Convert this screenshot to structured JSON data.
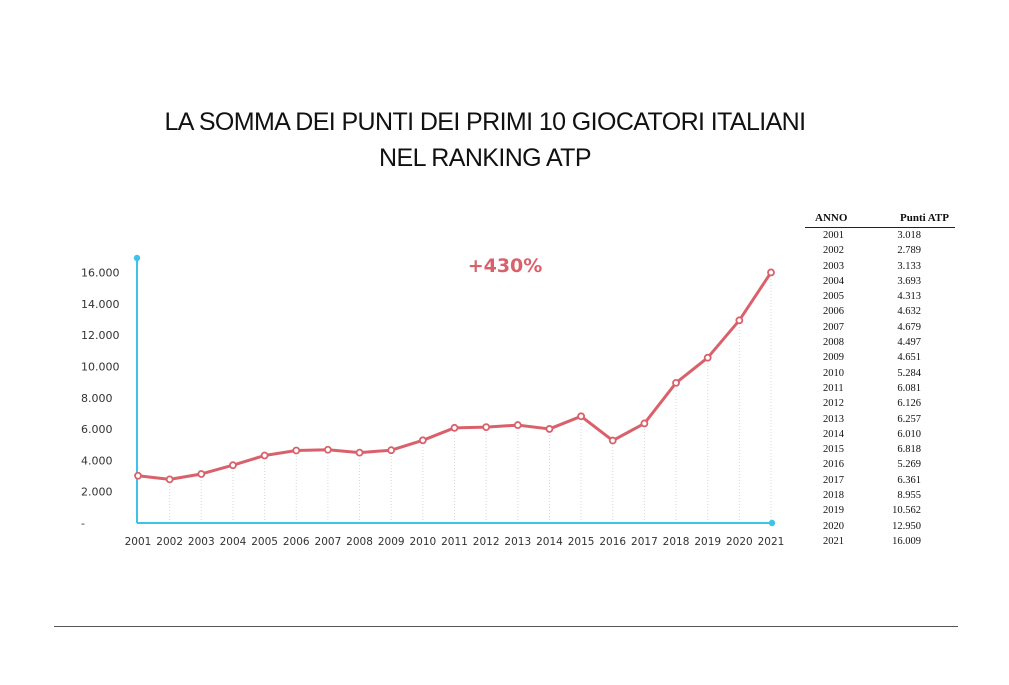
{
  "slide": {
    "title_line1": "LA SOMMA DEI PUNTI DEI PRIMI 10 GIOCATORI ITALIANI",
    "title_line2": "NEL RANKING ATP"
  },
  "colors": {
    "line": "#d9616b",
    "axis": "#3ec3e6",
    "grid": "#d8d8d8",
    "annotation": "#d9616b"
  },
  "chart_data": {
    "type": "line",
    "x": [
      "2001",
      "2002",
      "2003",
      "2004",
      "2005",
      "2006",
      "2007",
      "2008",
      "2009",
      "2010",
      "2011",
      "2012",
      "2013",
      "2014",
      "2015",
      "2016",
      "2017",
      "2018",
      "2019",
      "2020",
      "2021"
    ],
    "series": [
      {
        "values": [
          3018,
          2789,
          3133,
          3693,
          4313,
          4632,
          4679,
          4497,
          4651,
          5284,
          6081,
          6126,
          6257,
          6010,
          6818,
          5269,
          6361,
          8955,
          10562,
          12950,
          16009
        ]
      }
    ],
    "yticks": [
      0,
      2000,
      4000,
      6000,
      8000,
      10000,
      12000,
      14000,
      16000
    ],
    "ytick_labels": [
      "-",
      "2.000",
      "4.000",
      "6.000",
      "8.000",
      "10.000",
      "12.000",
      "14.000",
      "16.000"
    ],
    "ylim": [
      0,
      17000
    ],
    "annotation": "+430%",
    "grid": "vertical dotted",
    "title": "",
    "xlabel": "",
    "ylabel": ""
  },
  "table": {
    "headers": [
      "ANNO",
      "Punti ATP"
    ],
    "rows": [
      [
        "2001",
        "3.018"
      ],
      [
        "2002",
        "2.789"
      ],
      [
        "2003",
        "3.133"
      ],
      [
        "2004",
        "3.693"
      ],
      [
        "2005",
        "4.313"
      ],
      [
        "2006",
        "4.632"
      ],
      [
        "2007",
        "4.679"
      ],
      [
        "2008",
        "4.497"
      ],
      [
        "2009",
        "4.651"
      ],
      [
        "2010",
        "5.284"
      ],
      [
        "2011",
        "6.081"
      ],
      [
        "2012",
        "6.126"
      ],
      [
        "2013",
        "6.257"
      ],
      [
        "2014",
        "6.010"
      ],
      [
        "2015",
        "6.818"
      ],
      [
        "2016",
        "5.269"
      ],
      [
        "2017",
        "6.361"
      ],
      [
        "2018",
        "8.955"
      ],
      [
        "2019",
        "10.562"
      ],
      [
        "2020",
        "12.950"
      ],
      [
        "2021",
        "16.009"
      ]
    ]
  }
}
